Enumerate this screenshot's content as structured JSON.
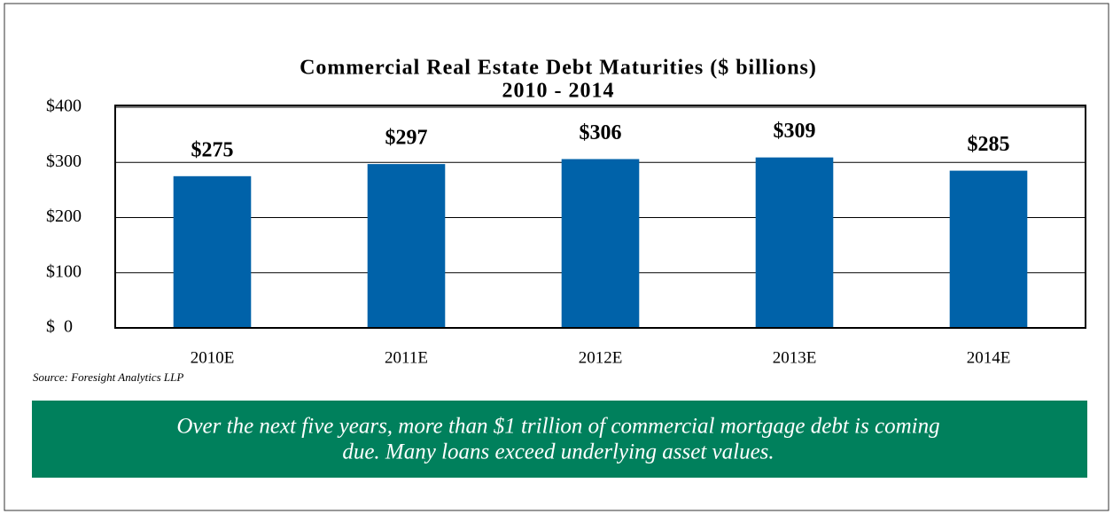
{
  "chart_data": {
    "type": "bar",
    "title": "Commercial Real Estate Debt Maturities ($ billions)",
    "subtitle": "2010 - 2014",
    "categories": [
      "2010E",
      "2011E",
      "2012E",
      "2013E",
      "2014E"
    ],
    "values": [
      275,
      297,
      306,
      309,
      285
    ],
    "value_labels": [
      "$275",
      "$297",
      "$306",
      "$309",
      "$285"
    ],
    "color": "#0062a9",
    "ylim": [
      0,
      400
    ],
    "yticks": [
      {
        "value": 0,
        "label": "$  0"
      },
      {
        "value": 100,
        "label": "$100"
      },
      {
        "value": 200,
        "label": "$200"
      },
      {
        "value": 300,
        "label": "$300"
      },
      {
        "value": 400,
        "label": "$400"
      }
    ],
    "grid": true,
    "source": "Source: Foresight Analytics LLP",
    "callout": [
      "Over the next five years, more than $1 trillion of commercial mortgage debt is coming",
      "due.  Many loans exceed underlying asset values."
    ]
  }
}
